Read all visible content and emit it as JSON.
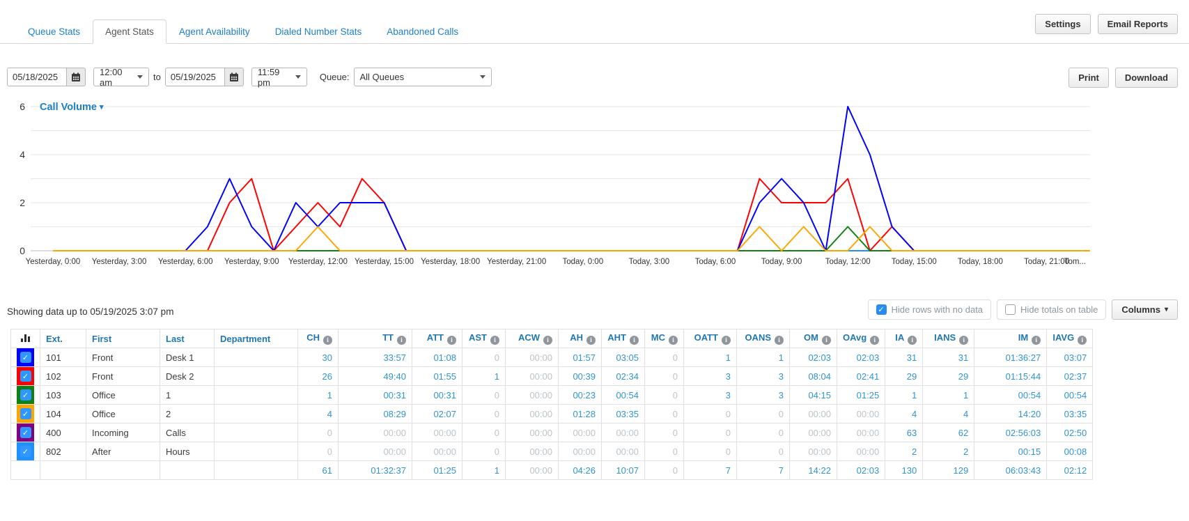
{
  "header": {
    "tabs": [
      {
        "label": "Queue Stats",
        "active": false
      },
      {
        "label": "Agent Stats",
        "active": true
      },
      {
        "label": "Agent Availability",
        "active": false
      },
      {
        "label": "Dialed Number Stats",
        "active": false
      },
      {
        "label": "Abandoned Calls",
        "active": false
      }
    ],
    "settings_label": "Settings",
    "email_reports_label": "Email Reports"
  },
  "filters": {
    "start_date": "05/18/2025",
    "start_time": "12:00 am",
    "to_label": "to",
    "end_date": "05/19/2025",
    "end_time": "11:59 pm",
    "queue_label": "Queue:",
    "queue_value": "All Queues",
    "print_label": "Print",
    "download_label": "Download"
  },
  "chart_data": {
    "type": "line",
    "title": "Call Volume",
    "x_unit": "hours from Yesterday 0:00, hourly points",
    "ylim": [
      0,
      6
    ],
    "yticks": [
      0,
      2,
      4,
      6
    ],
    "grid": "horizontal lines at every integer 0-6",
    "legend": "none (series colors match table row swatches)",
    "x_tick_labels": [
      "Yesterday, 0:00",
      "Yesterday, 3:00",
      "Yesterday, 6:00",
      "Yesterday, 9:00",
      "Yesterday, 12:00",
      "Yesterday, 15:00",
      "Yesterday, 18:00",
      "Yesterday, 21:00",
      "Today, 0:00",
      "Today, 3:00",
      "Today, 6:00",
      "Today, 9:00",
      "Today, 12:00",
      "Today, 15:00",
      "Today, 18:00",
      "Today, 21:00",
      "Tom..."
    ],
    "series": [
      {
        "name": "101",
        "color": "#0000ff",
        "values": [
          0,
          0,
          0,
          0,
          0,
          0,
          0,
          1,
          3,
          1,
          0,
          2,
          1,
          2,
          2,
          2,
          0,
          0,
          0,
          0,
          0,
          0,
          0,
          0,
          0,
          0,
          0,
          0,
          0,
          0,
          0,
          0,
          2,
          3,
          2,
          0,
          6,
          4,
          1,
          0,
          0,
          0,
          0,
          0,
          0,
          0,
          0,
          0,
          0
        ]
      },
      {
        "name": "102",
        "color": "#ff0000",
        "values": [
          0,
          0,
          0,
          0,
          0,
          0,
          0,
          0,
          2,
          3,
          0,
          1,
          2,
          1,
          3,
          2,
          0,
          0,
          0,
          0,
          0,
          0,
          0,
          0,
          0,
          0,
          0,
          0,
          0,
          0,
          0,
          0,
          3,
          2,
          2,
          2,
          3,
          0,
          1,
          0,
          0,
          0,
          0,
          0,
          0,
          0,
          0,
          0,
          0
        ]
      },
      {
        "name": "103",
        "color": "#108010",
        "values": [
          0,
          0,
          0,
          0,
          0,
          0,
          0,
          0,
          0,
          0,
          0,
          0,
          0,
          0,
          0,
          0,
          0,
          0,
          0,
          0,
          0,
          0,
          0,
          0,
          0,
          0,
          0,
          0,
          0,
          0,
          0,
          0,
          0,
          0,
          0,
          0,
          1,
          0,
          0,
          0,
          0,
          0,
          0,
          0,
          0,
          0,
          0,
          0,
          0
        ]
      },
      {
        "name": "104",
        "color": "#ffa500",
        "values": [
          0,
          0,
          0,
          0,
          0,
          0,
          0,
          0,
          0,
          0,
          0,
          0,
          1,
          0,
          0,
          0,
          0,
          0,
          0,
          0,
          0,
          0,
          0,
          0,
          0,
          0,
          0,
          0,
          0,
          0,
          0,
          0,
          1,
          0,
          1,
          0,
          0,
          1,
          0,
          0,
          0,
          0,
          0,
          0,
          0,
          0,
          0,
          0,
          0
        ]
      },
      {
        "name": "400",
        "color": "#800080",
        "values": [
          0,
          0,
          0,
          0,
          0,
          0,
          0,
          0,
          0,
          0,
          0,
          0,
          0,
          0,
          0,
          0,
          0,
          0,
          0,
          0,
          0,
          0,
          0,
          0,
          0,
          0,
          0,
          0,
          0,
          0,
          0,
          0,
          0,
          0,
          0,
          0,
          0,
          0,
          0,
          0,
          0,
          0,
          0,
          0,
          0,
          0,
          0,
          0,
          0
        ]
      },
      {
        "name": "802",
        "color": "#1e90ff",
        "values": [
          0,
          0,
          0,
          0,
          0,
          0,
          0,
          0,
          0,
          0,
          0,
          0,
          0,
          0,
          0,
          0,
          0,
          0,
          0,
          0,
          0,
          0,
          0,
          0,
          0,
          0,
          0,
          0,
          0,
          0,
          0,
          0,
          0,
          0,
          0,
          0,
          0,
          0,
          0,
          0,
          0,
          0,
          0,
          0,
          0,
          0,
          0,
          0,
          0
        ]
      }
    ]
  },
  "status_text": "Showing data up to 05/19/2025 3:07 pm",
  "controls": {
    "hide_rows": {
      "label": "Hide rows with no data",
      "checked": true
    },
    "hide_totals": {
      "label": "Hide totals on table",
      "checked": false
    },
    "columns_label": "Columns"
  },
  "table": {
    "columns": [
      "",
      "Ext.",
      "First",
      "Last",
      "Department",
      "CH",
      "TT",
      "ATT",
      "AST",
      "ACW",
      "AH",
      "AHT",
      "MC",
      "OATT",
      "OANS",
      "OM",
      "OAvg",
      "IA",
      "IANS",
      "IM",
      "IAVG"
    ],
    "info_icon_columns_start": 5,
    "rows": [
      {
        "color": "#0000ff",
        "checked": true,
        "cells": [
          "101",
          "Front",
          "Desk 1",
          "",
          "30",
          "33:57",
          "01:08",
          "0",
          "00:00",
          "01:57",
          "03:05",
          "0",
          "1",
          "1",
          "02:03",
          "02:03",
          "31",
          "31",
          "01:36:27",
          "03:07"
        ]
      },
      {
        "color": "#ff0000",
        "checked": true,
        "cells": [
          "102",
          "Front",
          "Desk 2",
          "",
          "26",
          "49:40",
          "01:55",
          "1",
          "00:00",
          "00:39",
          "02:34",
          "0",
          "3",
          "3",
          "08:04",
          "02:41",
          "29",
          "29",
          "01:15:44",
          "02:37"
        ]
      },
      {
        "color": "#108010",
        "checked": true,
        "cells": [
          "103",
          "Office",
          "1",
          "",
          "1",
          "00:31",
          "00:31",
          "0",
          "00:00",
          "00:23",
          "00:54",
          "0",
          "3",
          "3",
          "04:15",
          "01:25",
          "1",
          "1",
          "00:54",
          "00:54"
        ]
      },
      {
        "color": "#ffa500",
        "checked": true,
        "cells": [
          "104",
          "Office",
          "2",
          "",
          "4",
          "08:29",
          "02:07",
          "0",
          "00:00",
          "01:28",
          "03:35",
          "0",
          "0",
          "0",
          "00:00",
          "00:00",
          "4",
          "4",
          "14:20",
          "03:35"
        ]
      },
      {
        "color": "#800080",
        "checked": true,
        "cells": [
          "400",
          "Incoming",
          "Calls",
          "",
          "0",
          "00:00",
          "00:00",
          "0",
          "00:00",
          "00:00",
          "00:00",
          "0",
          "0",
          "0",
          "00:00",
          "00:00",
          "63",
          "62",
          "02:56:03",
          "02:50"
        ]
      },
      {
        "color": "#1e90ff",
        "checked": true,
        "cells": [
          "802",
          "After",
          "Hours",
          "",
          "0",
          "00:00",
          "00:00",
          "0",
          "00:00",
          "00:00",
          "00:00",
          "0",
          "0",
          "0",
          "00:00",
          "00:00",
          "2",
          "2",
          "00:15",
          "00:08"
        ]
      }
    ],
    "totals": [
      "",
      "",
      "",
      "",
      "61",
      "01:32:37",
      "01:25",
      "1",
      "00:00",
      "04:26",
      "10:07",
      "0",
      "7",
      "7",
      "14:22",
      "02:03",
      "130",
      "129",
      "06:03:43",
      "02:12"
    ]
  }
}
